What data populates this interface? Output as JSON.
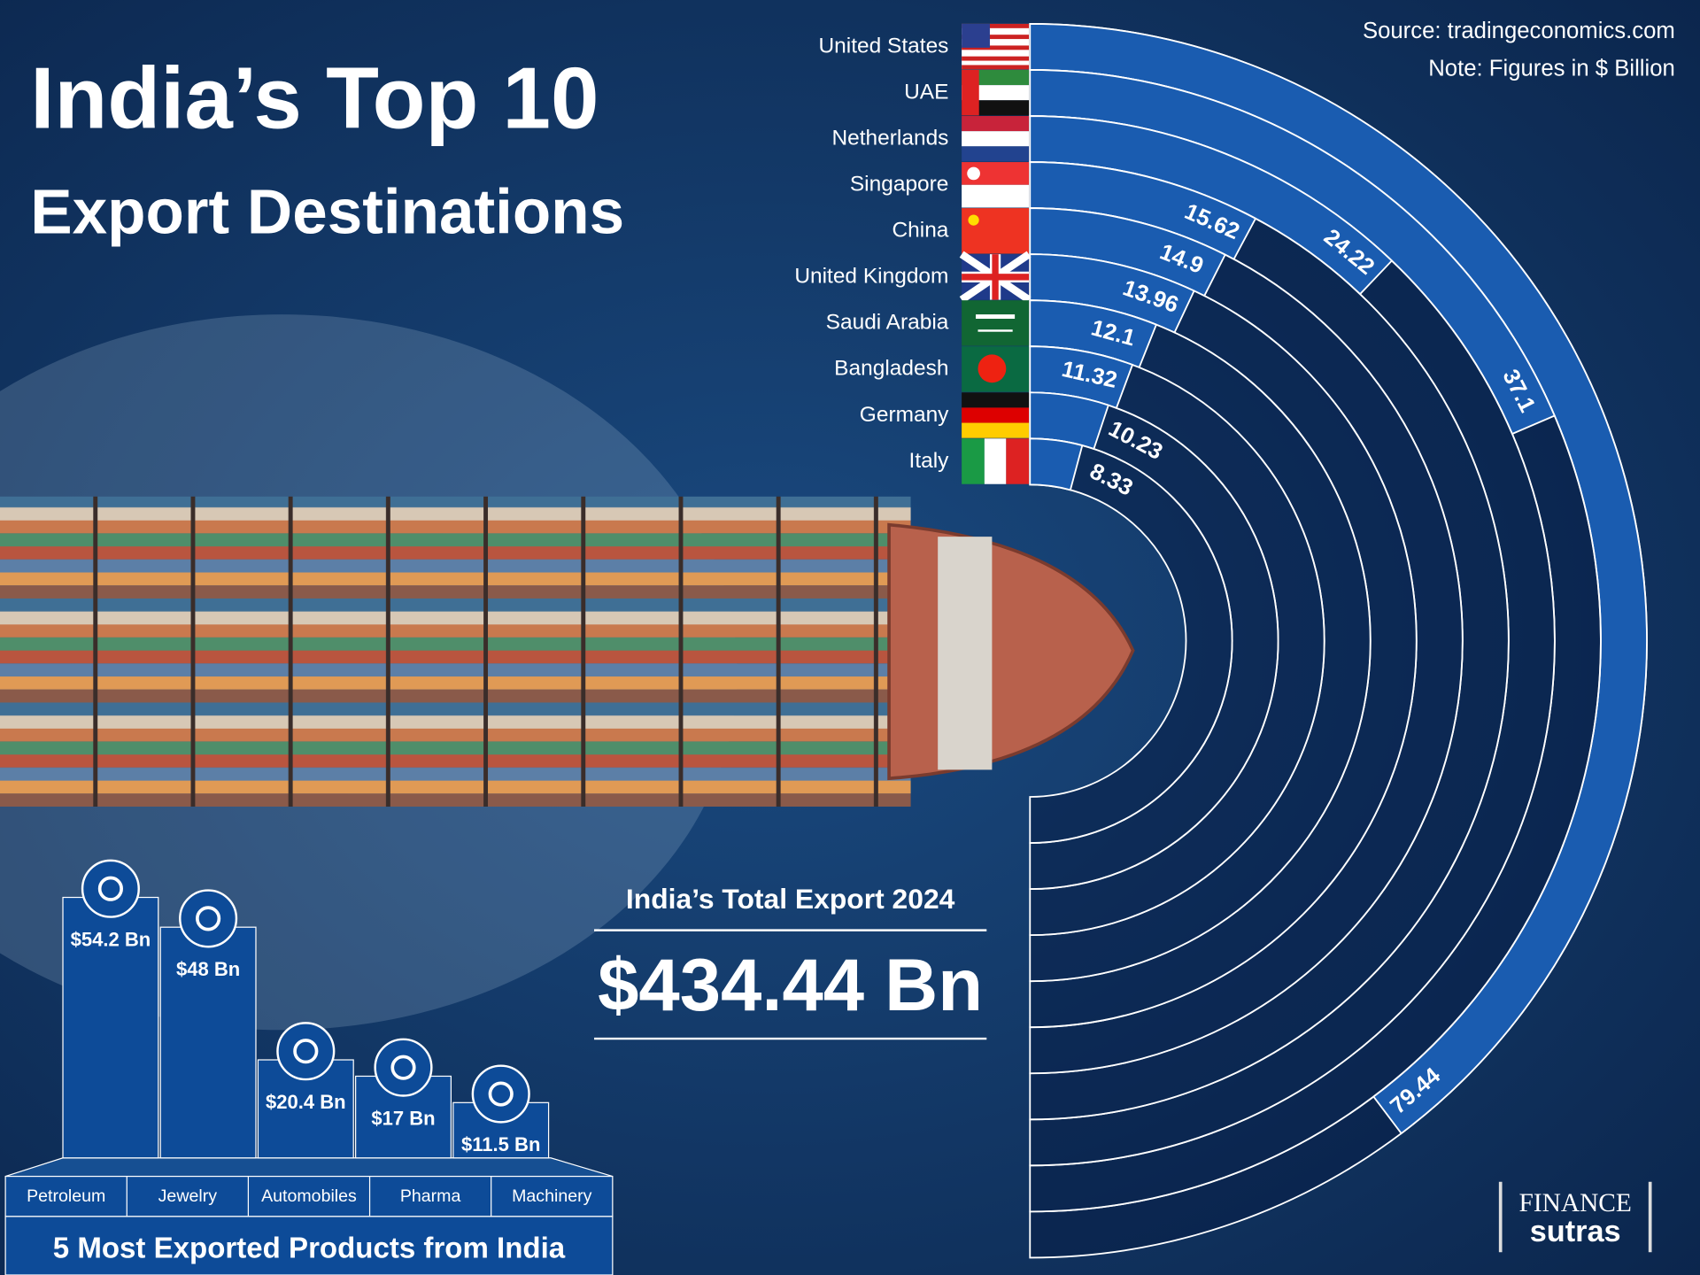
{
  "chart_data": [
    {
      "type": "radial-bar",
      "title": "India’s Top 10",
      "subtitle": "Export Destinations",
      "source": "Source: tradingeconomics.com",
      "note": "Note: Figures in $ Billion",
      "categories": [
        "United States",
        "UAE",
        "Netherlands",
        "Singapore",
        "China",
        "United Kingdom",
        "Saudi Arabia",
        "Bangladesh",
        "Germany",
        "Italy"
      ],
      "values": [
        79.44,
        37.1,
        24.22,
        15.62,
        14.9,
        13.96,
        12.1,
        11.32,
        10.23,
        8.33
      ],
      "color": "#1a5cb0",
      "rlim": [
        0,
        100
      ]
    },
    {
      "type": "bar",
      "title": "5 Most Exported Products from India",
      "categories": [
        "Petroleum",
        "Jewelry",
        "Automobiles",
        "Pharma",
        "Machinery"
      ],
      "values": [
        54.2,
        48,
        20.4,
        17,
        11.5
      ],
      "value_labels": [
        "$54.2 Bn",
        "$48 Bn",
        "$20.4 Bn",
        "$17 Bn",
        "$11.5 Bn"
      ],
      "color": "#0d4b98",
      "ylim": [
        0,
        60
      ]
    }
  ],
  "total_export": {
    "label": "India’s Total Export 2024",
    "text": "$434.44 Bn"
  },
  "logo": {
    "line1": "FINANCE",
    "line2": "sutras"
  }
}
